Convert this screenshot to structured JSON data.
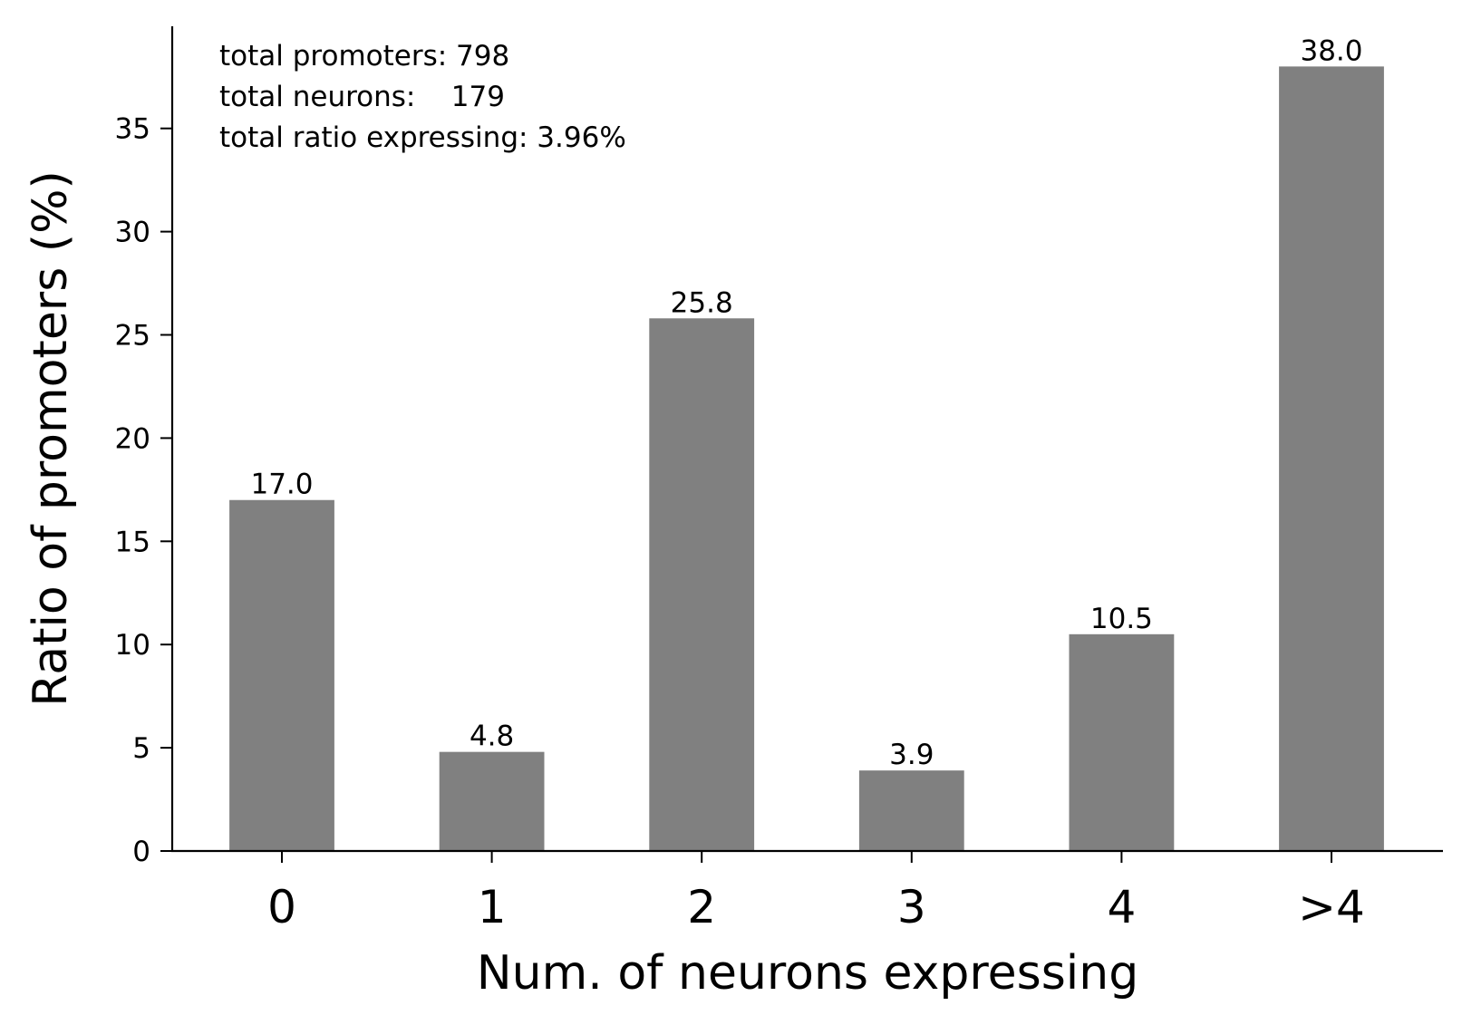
{
  "chart_data": {
    "type": "bar",
    "categories": [
      "0",
      "1",
      "2",
      "3",
      "4",
      ">4"
    ],
    "values": [
      17.0,
      4.8,
      25.8,
      3.9,
      10.5,
      38.0
    ],
    "value_labels": [
      "17.0",
      "4.8",
      "25.8",
      "3.9",
      "10.5",
      "38.0"
    ],
    "xlabel": "Num. of neurons expressing",
    "ylabel": "Ratio of promoters (%)",
    "ylim": [
      0,
      40
    ],
    "yticks": [
      0,
      5,
      10,
      15,
      20,
      25,
      30,
      35
    ],
    "grid": false,
    "bar_color": "#808080",
    "annotations": [
      "total promoters: 798",
      "total neurons:    179",
      "total ratio expressing: 3.96%"
    ]
  }
}
